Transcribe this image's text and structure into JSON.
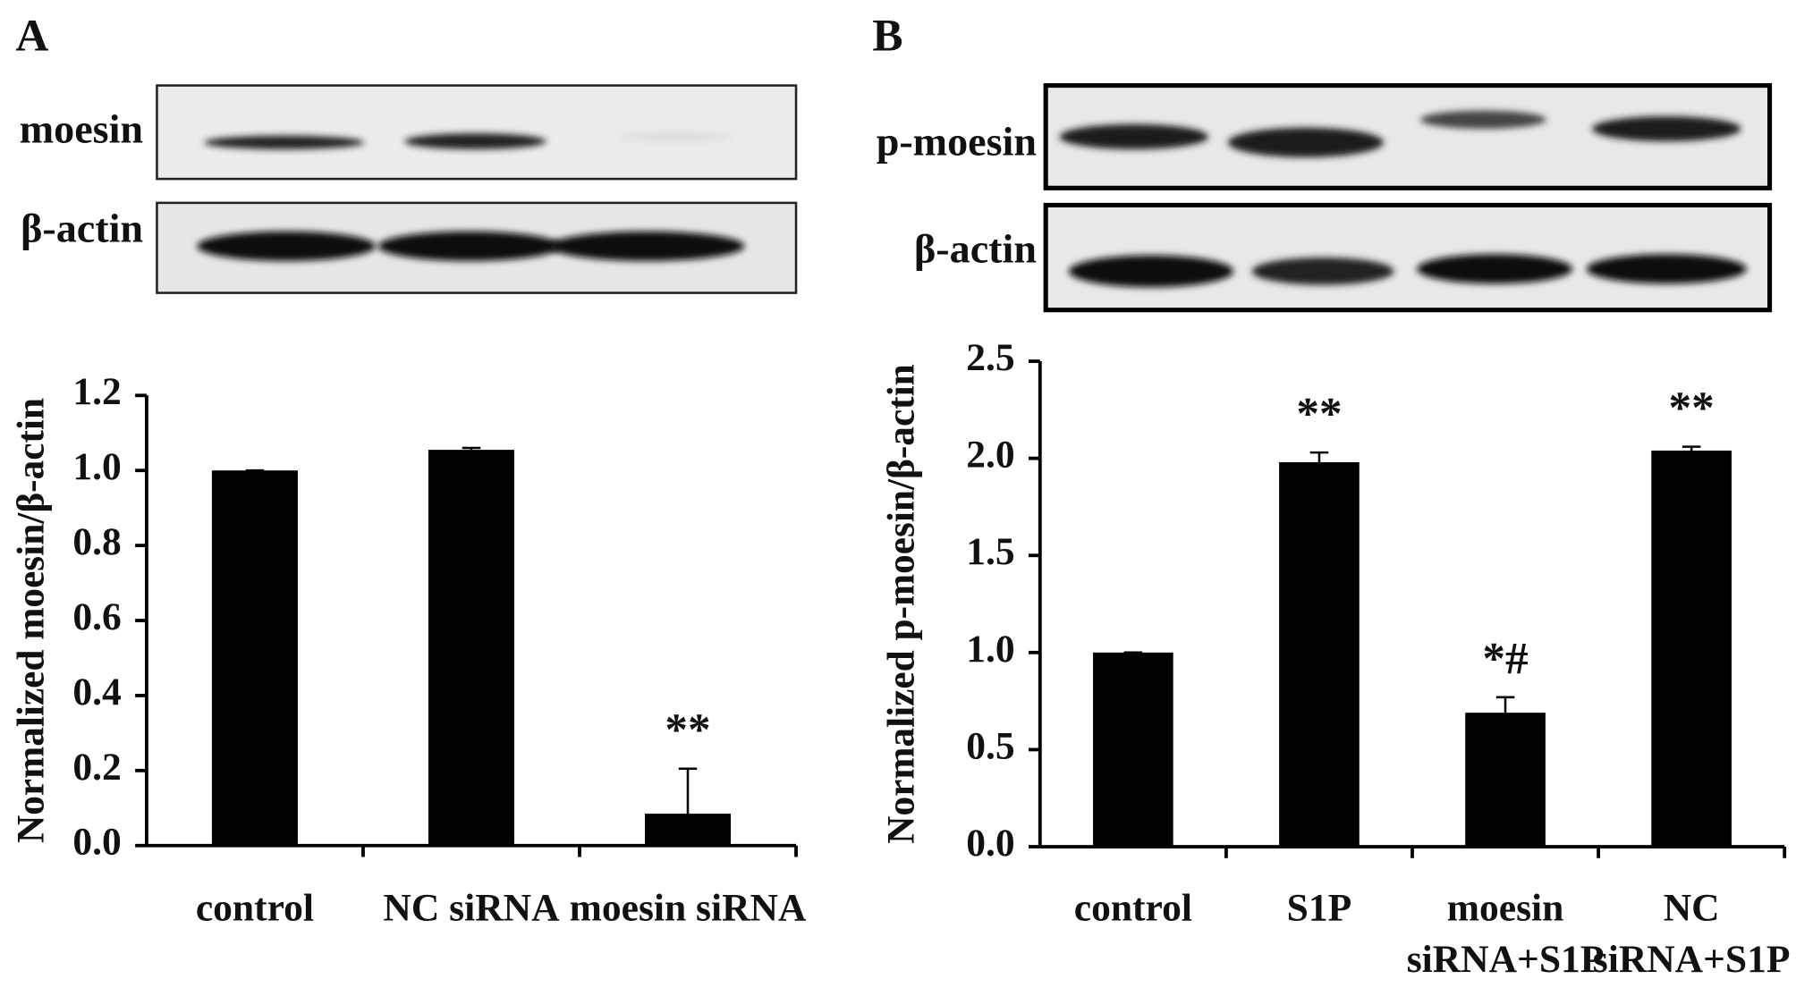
{
  "chart_data": [
    {
      "type": "bar",
      "panel": "A",
      "blot_labels": [
        "moesin",
        "β-actin"
      ],
      "y_label": "Normalized moesin/β-actin",
      "categories": [
        [
          "control"
        ],
        [
          "NC siRNA"
        ],
        [
          "moesin siRNA"
        ]
      ],
      "values": [
        1.0,
        1.055,
        0.085
      ],
      "errors": [
        0,
        0.005,
        0.12
      ],
      "annotations": [
        null,
        null,
        "**"
      ],
      "color": "#000000",
      "ylim": [
        0,
        1.2
      ],
      "yticks": [
        {
          "value": 0,
          "label": "0.0"
        },
        0.2,
        0.4,
        0.6,
        0.8,
        {
          "value": 1,
          "label": "1.0"
        },
        1.2
      ]
    },
    {
      "type": "bar",
      "panel": "B",
      "blot_labels": [
        "p-moesin",
        "β-actin"
      ],
      "y_label": "Normalized p-moesin/β-actin",
      "categories": [
        [
          "control"
        ],
        [
          "S1P"
        ],
        [
          "moesin",
          "siRNA+S1P"
        ],
        [
          "NC",
          "siRNA+S1P"
        ]
      ],
      "values": [
        1.0,
        1.98,
        0.69,
        2.04
      ],
      "errors": [
        0,
        0.05,
        0.08,
        0.02
      ],
      "annotations": [
        null,
        "**",
        "*#",
        "**"
      ],
      "color": "#000000",
      "ylim": [
        0,
        2.5
      ],
      "yticks": [
        {
          "value": 0,
          "label": "0.0"
        },
        0.5,
        {
          "value": 1,
          "label": "1.0"
        },
        1.5,
        {
          "value": 2,
          "label": "2.0"
        },
        2.5
      ]
    }
  ]
}
